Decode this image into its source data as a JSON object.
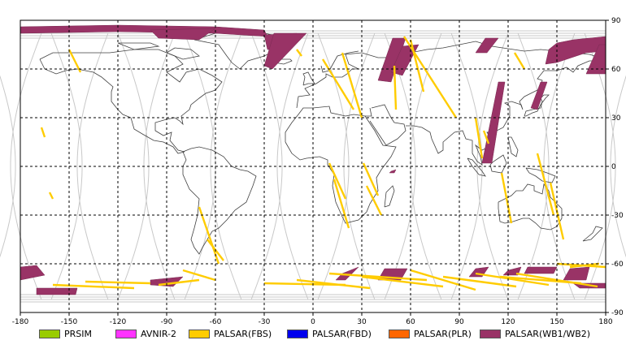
{
  "chart_data": {
    "type": "map",
    "title": "",
    "xlabel": "",
    "ylabel": "",
    "xlim": [
      -180,
      180
    ],
    "ylim": [
      -90,
      90
    ],
    "x_ticks": [
      -180,
      -150,
      -120,
      -90,
      -60,
      -30,
      0,
      30,
      60,
      90,
      120,
      150,
      180
    ],
    "y_ticks": [
      90,
      60,
      30,
      0,
      -30,
      -60,
      -90
    ],
    "grid": true,
    "legend_position": "bottom",
    "series": [
      {
        "name": "PRSIM",
        "color": "#99cc00"
      },
      {
        "name": "AVNIR-2",
        "color": "#ff33ff"
      },
      {
        "name": "PALSAR(FBS)",
        "color": "#ffcc00"
      },
      {
        "name": "PALSAR(FBD)",
        "color": "#0000ee"
      },
      {
        "name": "PALSAR(PLR)",
        "color": "#ff6600"
      },
      {
        "name": "PALSAR(WB1/WB2)",
        "color": "#993366"
      }
    ],
    "wb_swaths": [
      {
        "points": [
          [
            -180,
            86
          ],
          [
            -120,
            87
          ],
          [
            -60,
            86
          ],
          [
            -30,
            84
          ],
          [
            -28,
            80
          ],
          [
            -60,
            82
          ],
          [
            -120,
            83
          ],
          [
            -180,
            82
          ]
        ]
      },
      {
        "points": [
          [
            -100,
            84
          ],
          [
            -60,
            85
          ],
          [
            -70,
            78
          ],
          [
            -95,
            79
          ]
        ]
      },
      {
        "points": [
          [
            -30,
            81
          ],
          [
            -10,
            82
          ],
          [
            -20,
            72
          ],
          [
            -28,
            72
          ]
        ]
      },
      {
        "points": [
          [
            -24,
            82
          ],
          [
            -4,
            82
          ],
          [
            -25,
            60
          ],
          [
            -30,
            62
          ]
        ]
      },
      {
        "points": [
          [
            49,
            79
          ],
          [
            57,
            79
          ],
          [
            48,
            52
          ],
          [
            40,
            53
          ]
        ]
      },
      {
        "points": [
          [
            55,
            74
          ],
          [
            65,
            75
          ],
          [
            55,
            56
          ],
          [
            48,
            58
          ]
        ]
      },
      {
        "points": [
          [
            106,
            79
          ],
          [
            114,
            79
          ],
          [
            107,
            70
          ],
          [
            100,
            70
          ]
        ]
      },
      {
        "points": [
          [
            114,
            52
          ],
          [
            118,
            52
          ],
          [
            110,
            2
          ],
          [
            104,
            2
          ]
        ]
      },
      {
        "points": [
          [
            145,
            72
          ],
          [
            150,
            76
          ],
          [
            160,
            78
          ],
          [
            170,
            79
          ],
          [
            180,
            80
          ],
          [
            180,
            71
          ],
          [
            168,
            70
          ],
          [
            150,
            64
          ],
          [
            143,
            63
          ]
        ]
      },
      {
        "points": [
          [
            176,
            75
          ],
          [
            180,
            75
          ],
          [
            180,
            57
          ],
          [
            168,
            57
          ]
        ]
      },
      {
        "points": [
          [
            140,
            52
          ],
          [
            144,
            52
          ],
          [
            138,
            35
          ],
          [
            134,
            36
          ]
        ]
      },
      {
        "points": [
          [
            48,
            -3
          ],
          [
            51,
            -2
          ],
          [
            50,
            -4
          ],
          [
            47,
            -4
          ]
        ]
      },
      {
        "points": [
          [
            -180,
            -62
          ],
          [
            -170,
            -61
          ],
          [
            -165,
            -67
          ],
          [
            -180,
            -70
          ]
        ]
      },
      {
        "points": [
          [
            -170,
            -75
          ],
          [
            -145,
            -75
          ],
          [
            -146,
            -79
          ],
          [
            -170,
            -79
          ]
        ]
      },
      {
        "points": [
          [
            -100,
            -70
          ],
          [
            -80,
            -68
          ],
          [
            -86,
            -74
          ],
          [
            -100,
            -73
          ]
        ]
      },
      {
        "points": [
          [
            18,
            -66
          ],
          [
            28,
            -62
          ],
          [
            20,
            -70
          ],
          [
            14,
            -70
          ]
        ]
      },
      {
        "points": [
          [
            44,
            -63
          ],
          [
            58,
            -63
          ],
          [
            54,
            -70
          ],
          [
            40,
            -70
          ]
        ]
      },
      {
        "points": [
          [
            100,
            -63
          ],
          [
            108,
            -62
          ],
          [
            104,
            -68
          ],
          [
            96,
            -68
          ]
        ]
      },
      {
        "points": [
          [
            120,
            -64
          ],
          [
            128,
            -62
          ],
          [
            126,
            -67
          ],
          [
            117,
            -67
          ]
        ]
      },
      {
        "points": [
          [
            132,
            -62
          ],
          [
            150,
            -62
          ],
          [
            148,
            -66
          ],
          [
            130,
            -66
          ]
        ]
      },
      {
        "points": [
          [
            158,
            -63
          ],
          [
            170,
            -62
          ],
          [
            168,
            -70
          ],
          [
            154,
            -70
          ]
        ]
      },
      {
        "points": [
          [
            160,
            -72
          ],
          [
            180,
            -72
          ],
          [
            180,
            -75
          ],
          [
            164,
            -75
          ]
        ]
      }
    ],
    "fbs_tracks": [
      {
        "points": [
          [
            -150,
            72
          ],
          [
            -143,
            58
          ]
        ]
      },
      {
        "points": [
          [
            -167,
            24
          ],
          [
            -165,
            18
          ]
        ]
      },
      {
        "points": [
          [
            -162,
            -16
          ],
          [
            -160,
            -20
          ]
        ]
      },
      {
        "points": [
          [
            -10,
            72
          ],
          [
            -7,
            68
          ]
        ]
      },
      {
        "points": [
          [
            6,
            66
          ],
          [
            25,
            35
          ]
        ]
      },
      {
        "points": [
          [
            18,
            70
          ],
          [
            30,
            30
          ]
        ]
      },
      {
        "points": [
          [
            -70,
            -25
          ],
          [
            -58,
            -60
          ]
        ]
      },
      {
        "points": [
          [
            -65,
            -45
          ],
          [
            -55,
            -58
          ]
        ]
      },
      {
        "points": [
          [
            10,
            2
          ],
          [
            20,
            -20
          ]
        ]
      },
      {
        "points": [
          [
            13,
            -8
          ],
          [
            22,
            -38
          ]
        ]
      },
      {
        "points": [
          [
            31,
            2
          ],
          [
            40,
            -18
          ]
        ]
      },
      {
        "points": [
          [
            33,
            -12
          ],
          [
            42,
            -30
          ]
        ]
      },
      {
        "points": [
          [
            56,
            80
          ],
          [
            88,
            30
          ]
        ]
      },
      {
        "points": [
          [
            60,
            78
          ],
          [
            68,
            46
          ]
        ]
      },
      {
        "points": [
          [
            50,
            62
          ],
          [
            51,
            35
          ]
        ]
      },
      {
        "points": [
          [
            100,
            30
          ],
          [
            104,
            5
          ]
        ]
      },
      {
        "points": [
          [
            105,
            22
          ],
          [
            108,
            14
          ]
        ]
      },
      {
        "points": [
          [
            116,
            -4
          ],
          [
            122,
            -35
          ]
        ]
      },
      {
        "points": [
          [
            138,
            8
          ],
          [
            148,
            -30
          ]
        ]
      },
      {
        "points": [
          [
            146,
            -10
          ],
          [
            154,
            -45
          ]
        ]
      },
      {
        "points": [
          [
            124,
            70
          ],
          [
            130,
            60
          ]
        ]
      },
      {
        "points": [
          [
            158,
            -62
          ],
          [
            176,
            -60
          ]
        ]
      },
      {
        "points": [
          [
            -160,
            -73
          ],
          [
            -110,
            -75
          ]
        ]
      },
      {
        "points": [
          [
            -140,
            -71
          ],
          [
            -100,
            -72
          ]
        ]
      },
      {
        "points": [
          [
            -95,
            -73
          ],
          [
            -70,
            -70
          ]
        ]
      },
      {
        "points": [
          [
            -80,
            -64
          ],
          [
            -60,
            -70
          ]
        ]
      },
      {
        "points": [
          [
            -30,
            -72
          ],
          [
            20,
            -73
          ]
        ]
      },
      {
        "points": [
          [
            -10,
            -70
          ],
          [
            35,
            -75
          ]
        ]
      },
      {
        "points": [
          [
            10,
            -66
          ],
          [
            70,
            -70
          ]
        ]
      },
      {
        "points": [
          [
            30,
            -68
          ],
          [
            80,
            -74
          ]
        ]
      },
      {
        "points": [
          [
            60,
            -64
          ],
          [
            100,
            -76
          ]
        ]
      },
      {
        "points": [
          [
            80,
            -68
          ],
          [
            125,
            -74
          ]
        ]
      },
      {
        "points": [
          [
            100,
            -66
          ],
          [
            145,
            -73
          ]
        ]
      },
      {
        "points": [
          [
            115,
            -68
          ],
          [
            165,
            -72
          ]
        ]
      },
      {
        "points": [
          [
            125,
            -66
          ],
          [
            175,
            -74
          ]
        ]
      },
      {
        "points": [
          [
            150,
            -60
          ],
          [
            180,
            -62
          ]
        ]
      }
    ]
  }
}
